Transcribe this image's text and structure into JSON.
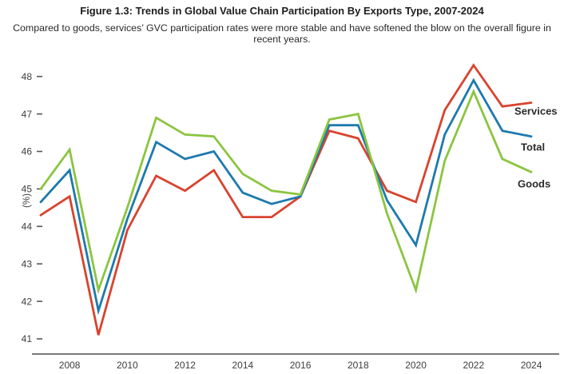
{
  "figure": {
    "title": "Figure 1.3: Trends in Global Value Chain Participation By Exports Type, 2007-2024",
    "subtitle": "Compared to goods, services’ GVC participation rates were more stable and have softened the blow on the overall figure in recent years."
  },
  "chart_data": {
    "type": "line",
    "title": "Figure 1.3: Trends in Global Value Chain Participation By Exports Type, 2007-2024",
    "subtitle": "Compared to goods, services’ GVC participation rates were more stable and have softened the blow on the overall figure in recent years.",
    "xlabel": "",
    "ylabel": "(%)",
    "ylim": [
      41,
      48
    ],
    "yticks": [
      41,
      42,
      43,
      44,
      45,
      46,
      47,
      48
    ],
    "xtick_labels": [
      2008,
      2010,
      2012,
      2014,
      2016,
      2018,
      2020,
      2022,
      2024
    ],
    "x": [
      2007,
      2008,
      2009,
      2010,
      2011,
      2012,
      2013,
      2014,
      2015,
      2016,
      2017,
      2018,
      2019,
      2020,
      2021,
      2022,
      2023,
      2024
    ],
    "grid": false,
    "legend_position": "right-end-of-lines",
    "series": [
      {
        "name": "Services",
        "color": "#d8432e",
        "values": [
          44.3,
          44.8,
          41.1,
          43.9,
          45.35,
          44.95,
          45.5,
          44.25,
          44.25,
          44.8,
          46.55,
          46.35,
          44.95,
          44.65,
          47.1,
          48.3,
          47.2,
          47.3
        ]
      },
      {
        "name": "Total",
        "color": "#1d7aad",
        "values": [
          44.65,
          45.5,
          41.75,
          44.2,
          46.25,
          45.8,
          46.0,
          44.9,
          44.6,
          44.8,
          46.7,
          46.7,
          44.7,
          43.5,
          46.45,
          47.9,
          46.55,
          46.4
        ]
      },
      {
        "name": "Goods",
        "color": "#8bc53f",
        "values": [
          45.0,
          46.05,
          42.3,
          44.5,
          46.9,
          46.45,
          46.4,
          45.4,
          44.95,
          44.85,
          46.85,
          47.0,
          44.35,
          42.3,
          45.75,
          47.6,
          45.8,
          45.45
        ]
      }
    ]
  }
}
